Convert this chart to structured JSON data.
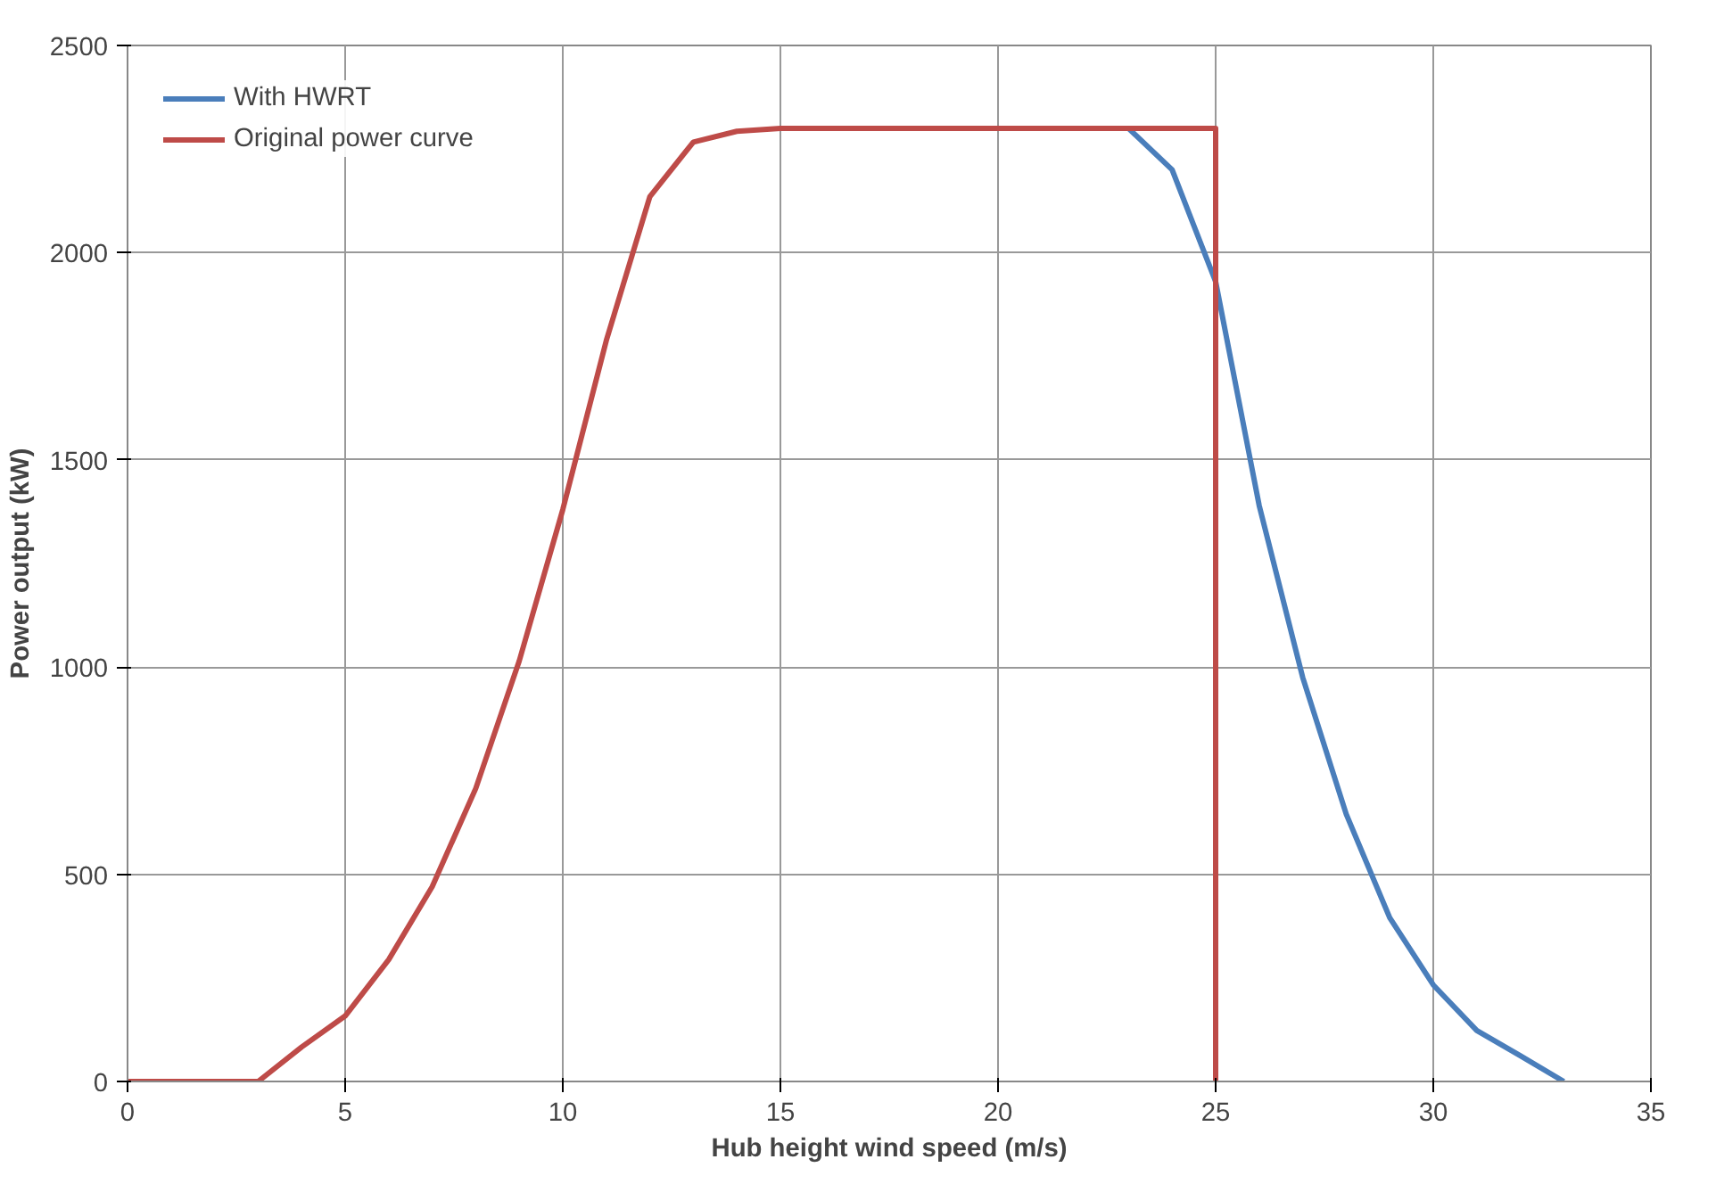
{
  "chart_data": {
    "type": "line",
    "xlabel": "Hub height wind speed (m/s)",
    "ylabel": "Power output (kW)",
    "xlim": [
      0,
      35
    ],
    "ylim": [
      0,
      2500
    ],
    "xticks": [
      0,
      5,
      10,
      15,
      20,
      25,
      30,
      35
    ],
    "yticks": [
      0,
      500,
      1000,
      1500,
      2000,
      2500
    ],
    "grid": true,
    "legend": "top left",
    "marker": "none",
    "line_style": "solid",
    "series": [
      {
        "name": "With HWRT",
        "color": "#4a7ebb",
        "x": [
          23,
          24,
          25,
          26,
          27,
          28,
          29,
          30,
          31,
          32,
          33
        ],
        "values": [
          2300,
          2200,
          1930,
          1390,
          975,
          645,
          395,
          233,
          123,
          62,
          0
        ]
      },
      {
        "name": "Original power curve",
        "color": "#be4b48",
        "x": [
          0,
          1,
          2,
          3,
          4,
          5,
          6,
          7,
          8,
          9,
          10,
          11,
          12,
          13,
          14,
          15,
          16,
          17,
          18,
          19,
          20,
          21,
          22,
          23,
          24,
          25,
          25
        ],
        "values": [
          0,
          0,
          0,
          0,
          83,
          158,
          294,
          470,
          707,
          1015,
          1380,
          1788,
          2135,
          2267,
          2293,
          2300,
          2300,
          2300,
          2300,
          2300,
          2300,
          2300,
          2300,
          2300,
          2300,
          2300,
          0
        ]
      }
    ]
  }
}
